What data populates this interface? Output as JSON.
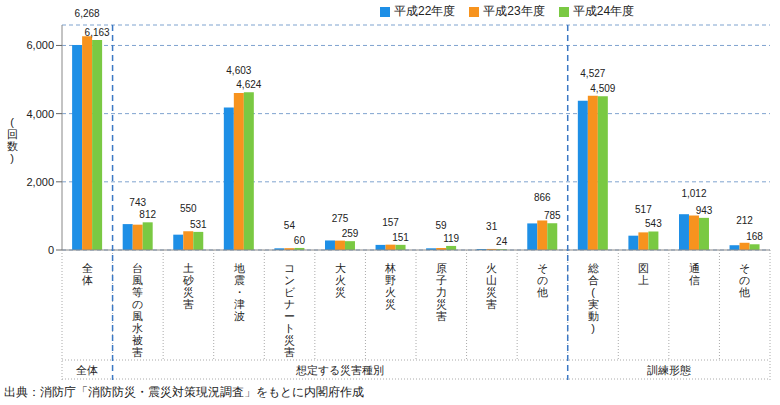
{
  "chart_data": {
    "type": "bar",
    "y_label": "(回数)",
    "categories": [
      "全体",
      "台風等の風水被害",
      "土砂災害",
      "地震・津波",
      "コンビナート災害",
      "大火災",
      "林野火災",
      "原子力災害",
      "火山災害",
      "その他",
      "総合(実動)",
      "図上",
      "通信",
      "その他"
    ],
    "category_groups": [
      "全体",
      "想定する災害種別",
      "想定する災害種別",
      "想定する災害種別",
      "想定する災害種別",
      "想定する災害種別",
      "想定する災害種別",
      "想定する災害種別",
      "想定する災害種別",
      "想定する災害種別",
      "訓練形態",
      "訓練形態",
      "訓練形態",
      "訓練形態"
    ],
    "series": [
      {
        "name": "平成22年度",
        "color": "#1e8fe6",
        "values": [
          6010,
          760,
          450,
          4180,
          50,
          280,
          150,
          50,
          30,
          780,
          4380,
          420,
          1050,
          140
        ]
      },
      {
        "name": "平成23年度",
        "color": "#f7931e",
        "data_labels": true,
        "values": [
          6268,
          743,
          550,
          4603,
          54,
          275,
          157,
          59,
          31,
          866,
          4527,
          517,
          1012,
          212
        ],
        "value_labels": [
          "6,268",
          "743",
          "550",
          "4,603",
          "54",
          "275",
          "157",
          "59",
          "31",
          "866",
          "4,527",
          "517",
          "1,012",
          "212"
        ]
      },
      {
        "name": "平成24年度",
        "color": "#7ac943",
        "data_labels": true,
        "values": [
          6163,
          812,
          531,
          4624,
          60,
          259,
          151,
          119,
          24,
          785,
          4509,
          543,
          943,
          168
        ],
        "value_labels": [
          "6,163",
          "812",
          "531",
          "4,624",
          "60",
          "259",
          "151",
          "119",
          "24",
          "785",
          "4,509",
          "543",
          "943",
          "168"
        ]
      }
    ],
    "ylim": [
      0,
      6600
    ],
    "yticks": [
      0,
      {
        "value": 2000,
        "label": "2,000"
      },
      {
        "value": 4000,
        "label": "4,000"
      },
      {
        "value": 6000,
        "label": "6,000"
      }
    ],
    "grid": true,
    "legend": "top",
    "source": "出典：消防庁「消防防災・震災対策現況調査」をもとに内閣府作成"
  }
}
